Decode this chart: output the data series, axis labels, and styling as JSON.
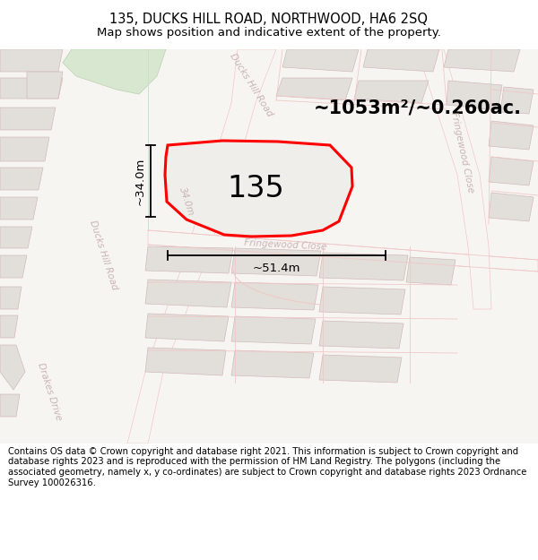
{
  "title": "135, DUCKS HILL ROAD, NORTHWOOD, HA6 2SQ",
  "subtitle": "Map shows position and indicative extent of the property.",
  "footer_text": "Contains OS data © Crown copyright and database right 2021. This information is subject to Crown copyright and database rights 2023 and is reproduced with the permission of HM Land Registry. The polygons (including the associated geometry, namely x, y co-ordinates) are subject to Crown copyright and database rights 2023 Ordnance Survey 100026316.",
  "area_text": "~1053m²/~0.260ac.",
  "property_label": "135",
  "dim_width": "~51.4m",
  "dim_height": "~34.0m",
  "title_fontsize": 10.5,
  "subtitle_fontsize": 9.5,
  "footer_fontsize": 7.2,
  "map_bg": "#f7f5f2",
  "road_fill": "#f7f5f2",
  "road_line": "#f0c8c8",
  "bld_fill": "#e2deda",
  "bld_edge": "#d0bcbc",
  "green_fill": "#d8e8d0",
  "green_edge": "#c0d4b8",
  "prop_fill": "#f0eeea",
  "prop_edge": "#ff0000",
  "road_label_color": "#c8b4b4",
  "meas_color": "#000000"
}
